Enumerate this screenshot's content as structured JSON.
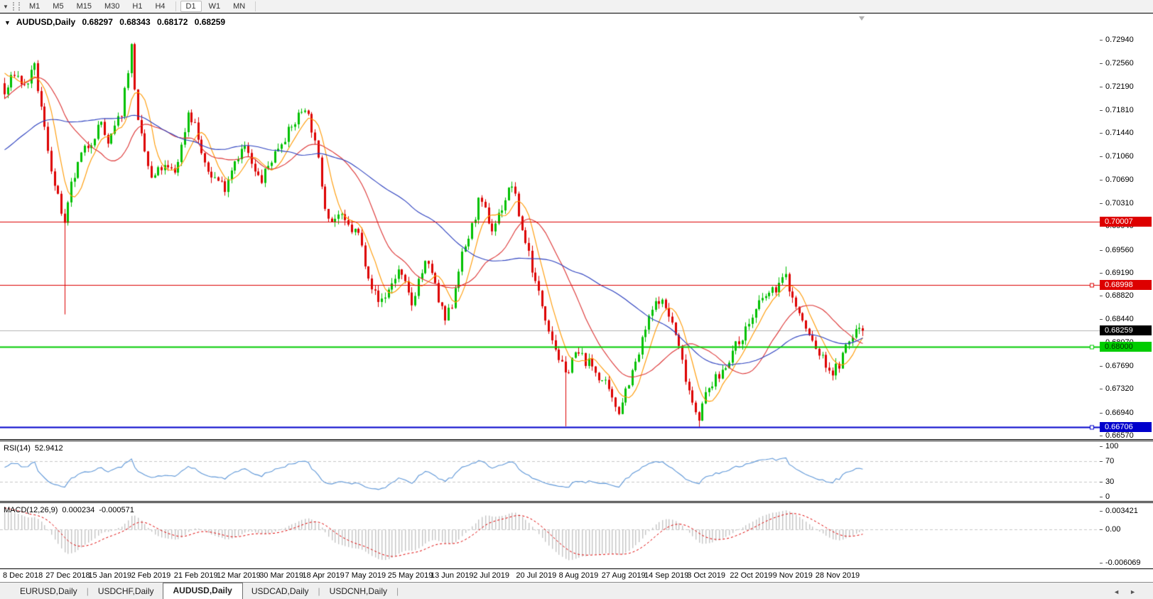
{
  "toolbar": {
    "dropdown_icon": "▼",
    "timeframes": [
      "M1",
      "M5",
      "M15",
      "M30",
      "H1",
      "H4",
      "D1",
      "W1",
      "MN"
    ],
    "active_timeframe": "D1"
  },
  "chart": {
    "dropdown_icon": "▼",
    "symbol_label": "AUDUSD,Daily",
    "ohlc": [
      "0.68297",
      "0.68343",
      "0.68172",
      "0.68259"
    ]
  },
  "chart_data": {
    "type": "candlestick",
    "symbol": "AUDUSD",
    "timeframe": "Daily",
    "title": "AUDUSD,Daily 0.68297 0.68343 0.68172 0.68259",
    "open": "0.68297",
    "high": "0.68343",
    "low": "0.68172",
    "close": "0.68259",
    "y_axis": {
      "ticks": [
        "0.72940",
        "0.72560",
        "0.72190",
        "0.71810",
        "0.71440",
        "0.71060",
        "0.70690",
        "0.70310",
        "0.69940",
        "0.69560",
        "0.69190",
        "0.68820",
        "0.68440",
        "0.68070",
        "0.67690",
        "0.67320",
        "0.66940",
        "0.66570"
      ]
    },
    "x_axis": {
      "labels": [
        "8 Dec 2018",
        "27 Dec 2018",
        "15 Jan 2019",
        "2 Feb 2019",
        "21 Feb 2019",
        "12 Mar 2019",
        "30 Mar 2019",
        "18 Apr 2019",
        "7 May 2019",
        "25 May 2019",
        "13 Jun 2019",
        "2 Jul 2019",
        "20 Jul 2019",
        "8 Aug 2019",
        "27 Aug 2019",
        "14 Sep 2019",
        "3 Oct 2019",
        "22 Oct 2019",
        "9 Nov 2019",
        "28 Nov 2019"
      ]
    },
    "levels": [
      {
        "price": 0.70007,
        "label": "0.70007",
        "color": "#dd0000",
        "text": "#ffffff",
        "width": 1,
        "handle": false
      },
      {
        "price": 0.68998,
        "label": "0.68998",
        "color": "#dd0000",
        "text": "#ffffff",
        "width": 1,
        "handle": true
      },
      {
        "price": 0.68,
        "label": "0.68000",
        "color": "#00cc00",
        "text": "#003300",
        "width": 2,
        "handle": true
      },
      {
        "price": 0.66706,
        "label": "0.66706",
        "color": "#0000cc",
        "text": "#ffffff",
        "width": 2,
        "handle": true
      }
    ],
    "current_price": {
      "value": 0.68259,
      "label": "0.68259",
      "line_color": "#b4b4b4",
      "bg": "#000000",
      "fg": "#ffffff"
    },
    "series": {
      "bars_total": 258,
      "bar_start": -60,
      "seed": 7,
      "last_bar": {
        "open": 0.68297,
        "high": 0.68343,
        "low": 0.68172,
        "close": 0.68259
      },
      "spikes": [
        {
          "bar": 18,
          "low": 0.6852
        },
        {
          "bar": 168,
          "low": 0.6672
        },
        {
          "bar": 208,
          "low": 0.6671
        },
        {
          "bar": 234,
          "high": 0.6929
        }
      ],
      "price_waypoints": [
        [
          -60,
          0.704
        ],
        [
          -45,
          0.701
        ],
        [
          -35,
          0.706
        ],
        [
          -25,
          0.709
        ],
        [
          -15,
          0.716
        ],
        [
          -8,
          0.723
        ],
        [
          -3,
          0.726
        ],
        [
          0,
          0.7205
        ],
        [
          3,
          0.7242
        ],
        [
          6,
          0.7218
        ],
        [
          9,
          0.7248
        ],
        [
          12,
          0.715
        ],
        [
          15,
          0.7058
        ],
        [
          17,
          0.7018
        ],
        [
          18,
          0.6992
        ],
        [
          20,
          0.7058
        ],
        [
          23,
          0.7108
        ],
        [
          26,
          0.7132
        ],
        [
          29,
          0.7162
        ],
        [
          31,
          0.7122
        ],
        [
          33,
          0.7152
        ],
        [
          35,
          0.7178
        ],
        [
          37,
          0.7248
        ],
        [
          38,
          0.7282
        ],
        [
          40,
          0.7158
        ],
        [
          44,
          0.7068
        ],
        [
          47,
          0.7088
        ],
        [
          51,
          0.7082
        ],
        [
          53,
          0.7122
        ],
        [
          55,
          0.7178
        ],
        [
          57,
          0.7158
        ],
        [
          60,
          0.7088
        ],
        [
          63,
          0.7072
        ],
        [
          66,
          0.7058
        ],
        [
          69,
          0.7102
        ],
        [
          72,
          0.7122
        ],
        [
          75,
          0.7078
        ],
        [
          77,
          0.7068
        ],
        [
          80,
          0.7102
        ],
        [
          83,
          0.7132
        ],
        [
          86,
          0.7152
        ],
        [
          88,
          0.7172
        ],
        [
          90,
          0.7188
        ],
        [
          92,
          0.7152
        ],
        [
          94,
          0.7098
        ],
        [
          96,
          0.7028
        ],
        [
          98,
          0.7002
        ],
        [
          100,
          0.7012
        ],
        [
          102,
          0.6998
        ],
        [
          104,
          0.6988
        ],
        [
          106,
          0.6982
        ],
        [
          108,
          0.6938
        ],
        [
          110,
          0.6898
        ],
        [
          112,
          0.6872
        ],
        [
          114,
          0.6882
        ],
        [
          116,
          0.6902
        ],
        [
          118,
          0.6922
        ],
        [
          120,
          0.6898
        ],
        [
          122,
          0.6868
        ],
        [
          124,
          0.6908
        ],
        [
          126,
          0.6932
        ],
        [
          128,
          0.6922
        ],
        [
          130,
          0.6872
        ],
        [
          132,
          0.6842
        ],
        [
          134,
          0.6868
        ],
        [
          136,
          0.6928
        ],
        [
          138,
          0.6962
        ],
        [
          140,
          0.6992
        ],
        [
          142,
          0.7032
        ],
        [
          144,
          0.7018
        ],
        [
          146,
          0.6988
        ],
        [
          148,
          0.7012
        ],
        [
          150,
          0.7038
        ],
        [
          152,
          0.7062
        ],
        [
          153,
          0.7038
        ],
        [
          155,
          0.6988
        ],
        [
          157,
          0.6952
        ],
        [
          159,
          0.6902
        ],
        [
          161,
          0.6868
        ],
        [
          163,
          0.6832
        ],
        [
          165,
          0.6798
        ],
        [
          167,
          0.6768
        ],
        [
          168,
          0.6752
        ],
        [
          170,
          0.6782
        ],
        [
          172,
          0.6788
        ],
        [
          174,
          0.6778
        ],
        [
          176,
          0.6768
        ],
        [
          178,
          0.6752
        ],
        [
          180,
          0.6738
        ],
        [
          182,
          0.6712
        ],
        [
          184,
          0.6698
        ],
        [
          186,
          0.6732
        ],
        [
          188,
          0.6758
        ],
        [
          190,
          0.6788
        ],
        [
          192,
          0.6828
        ],
        [
          194,
          0.6858
        ],
        [
          196,
          0.6878
        ],
        [
          198,
          0.6862
        ],
        [
          200,
          0.6838
        ],
        [
          202,
          0.6798
        ],
        [
          204,
          0.6752
        ],
        [
          206,
          0.6712
        ],
        [
          208,
          0.6688
        ],
        [
          210,
          0.6722
        ],
        [
          212,
          0.6742
        ],
        [
          214,
          0.6752
        ],
        [
          216,
          0.6772
        ],
        [
          218,
          0.6792
        ],
        [
          220,
          0.6808
        ],
        [
          222,
          0.6828
        ],
        [
          224,
          0.6848
        ],
        [
          226,
          0.6868
        ],
        [
          228,
          0.6882
        ],
        [
          230,
          0.6888
        ],
        [
          232,
          0.6902
        ],
        [
          234,
          0.6912
        ],
        [
          236,
          0.6878
        ],
        [
          238,
          0.6852
        ],
        [
          240,
          0.6828
        ],
        [
          242,
          0.6808
        ],
        [
          244,
          0.6788
        ],
        [
          246,
          0.6772
        ],
        [
          248,
          0.6758
        ],
        [
          250,
          0.6772
        ],
        [
          252,
          0.6798
        ],
        [
          254,
          0.6818
        ],
        [
          256,
          0.6832
        ],
        [
          257,
          0.68259
        ]
      ]
    },
    "moving_averages": [
      {
        "period": 7,
        "color": "#ff9900"
      },
      {
        "period": 21,
        "color": "#dd3333"
      },
      {
        "period": 50,
        "color": "#2b3fbf"
      }
    ],
    "colors": {
      "up": "#00c000",
      "down": "#dd0000",
      "background": "#ffffff"
    },
    "rsi": {
      "name": "RSI(14)",
      "value": "52.9412",
      "period": 14,
      "levels": [
        70,
        30
      ],
      "color": "#5e97d8",
      "axis_ticks": [
        {
          "label": "100",
          "value": 100
        },
        {
          "label": "70",
          "value": 70
        },
        {
          "label": "30",
          "value": 30
        },
        {
          "label": "0",
          "value": 0
        }
      ]
    },
    "macd": {
      "name": "MACD(12,26,9)",
      "main": "0.000234",
      "signal": "-0.000571",
      "fast": 12,
      "slow": 26,
      "smoothing": 9,
      "hist_color": "#c4c4c4",
      "signal_color": "#e00000",
      "axis_ticks": [
        {
          "label": "0.003421",
          "value": 0.003421
        },
        {
          "label": "0.00",
          "value": 0
        },
        {
          "label": "-0.006069",
          "value": -0.006069
        }
      ]
    }
  },
  "bottom": {
    "tabs": [
      "EURUSD,Daily",
      "USDCHF,Daily",
      "AUDUSD,Daily",
      "USDCAD,Daily",
      "USDCNH,Daily"
    ],
    "active_tab": "AUDUSD,Daily",
    "scroll_left": "◄",
    "scroll_right": "►"
  }
}
